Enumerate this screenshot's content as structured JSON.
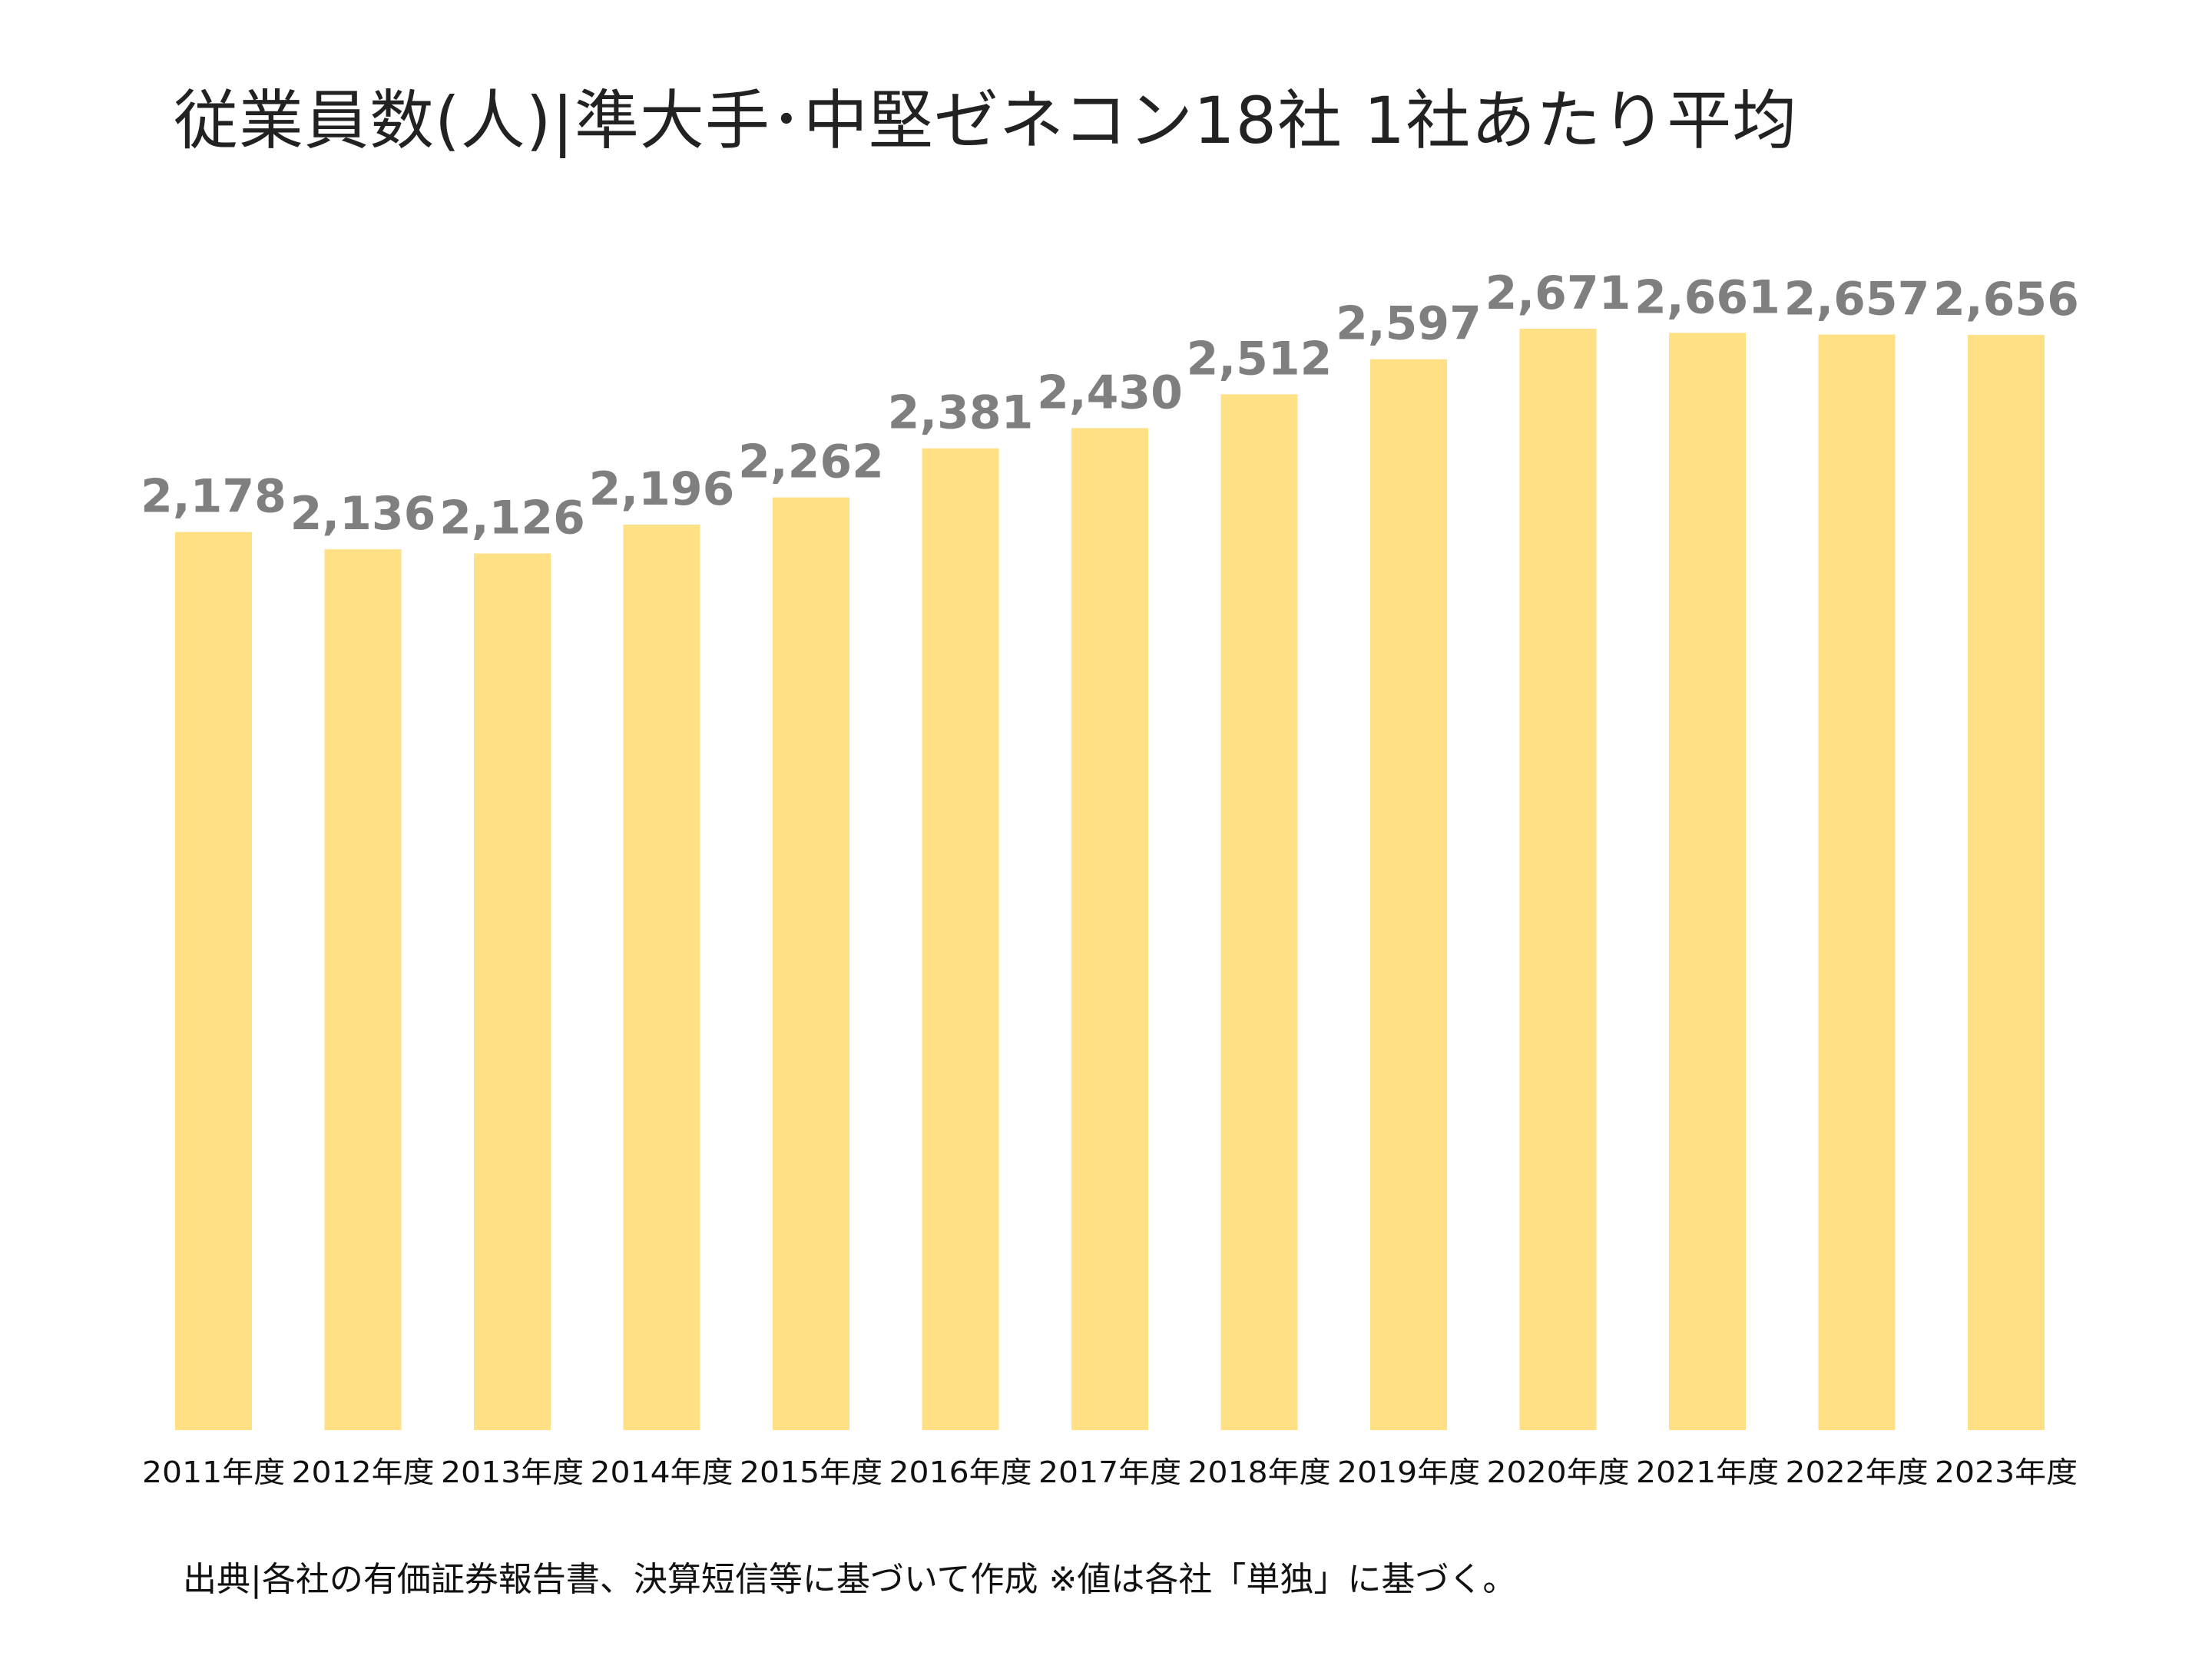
{
  "title": "従業員数(人)|準大手･中堅ゼネコン18社 1社あたり平均",
  "source_note": "出典|各社の有価証券報告書、決算短信等に基づいて作成 ※値は各社「単独」に基づく。",
  "colors": {
    "bar": "#FFE085",
    "value_label": "#7F7F7F",
    "tick_label": "#111111"
  },
  "chart_data": {
    "type": "bar",
    "title": "従業員数(人)|準大手･中堅ゼネコン18社 1社あたり平均",
    "xlabel": "",
    "ylabel": "",
    "ylim": [
      0,
      2671
    ],
    "grid": false,
    "categories": [
      "2011年度",
      "2012年度",
      "2013年度",
      "2014年度",
      "2015年度",
      "2016年度",
      "2017年度",
      "2018年度",
      "2019年度",
      "2020年度",
      "2021年度",
      "2022年度",
      "2023年度"
    ],
    "values": [
      2178,
      2136,
      2126,
      2196,
      2262,
      2381,
      2430,
      2512,
      2597,
      2671,
      2661,
      2657,
      2656
    ],
    "value_labels": [
      "2,178",
      "2,136",
      "2,126",
      "2,196",
      "2,262",
      "2,381",
      "2,430",
      "2,512",
      "2,597",
      "2,671",
      "2,661",
      "2,657",
      "2,656"
    ]
  }
}
